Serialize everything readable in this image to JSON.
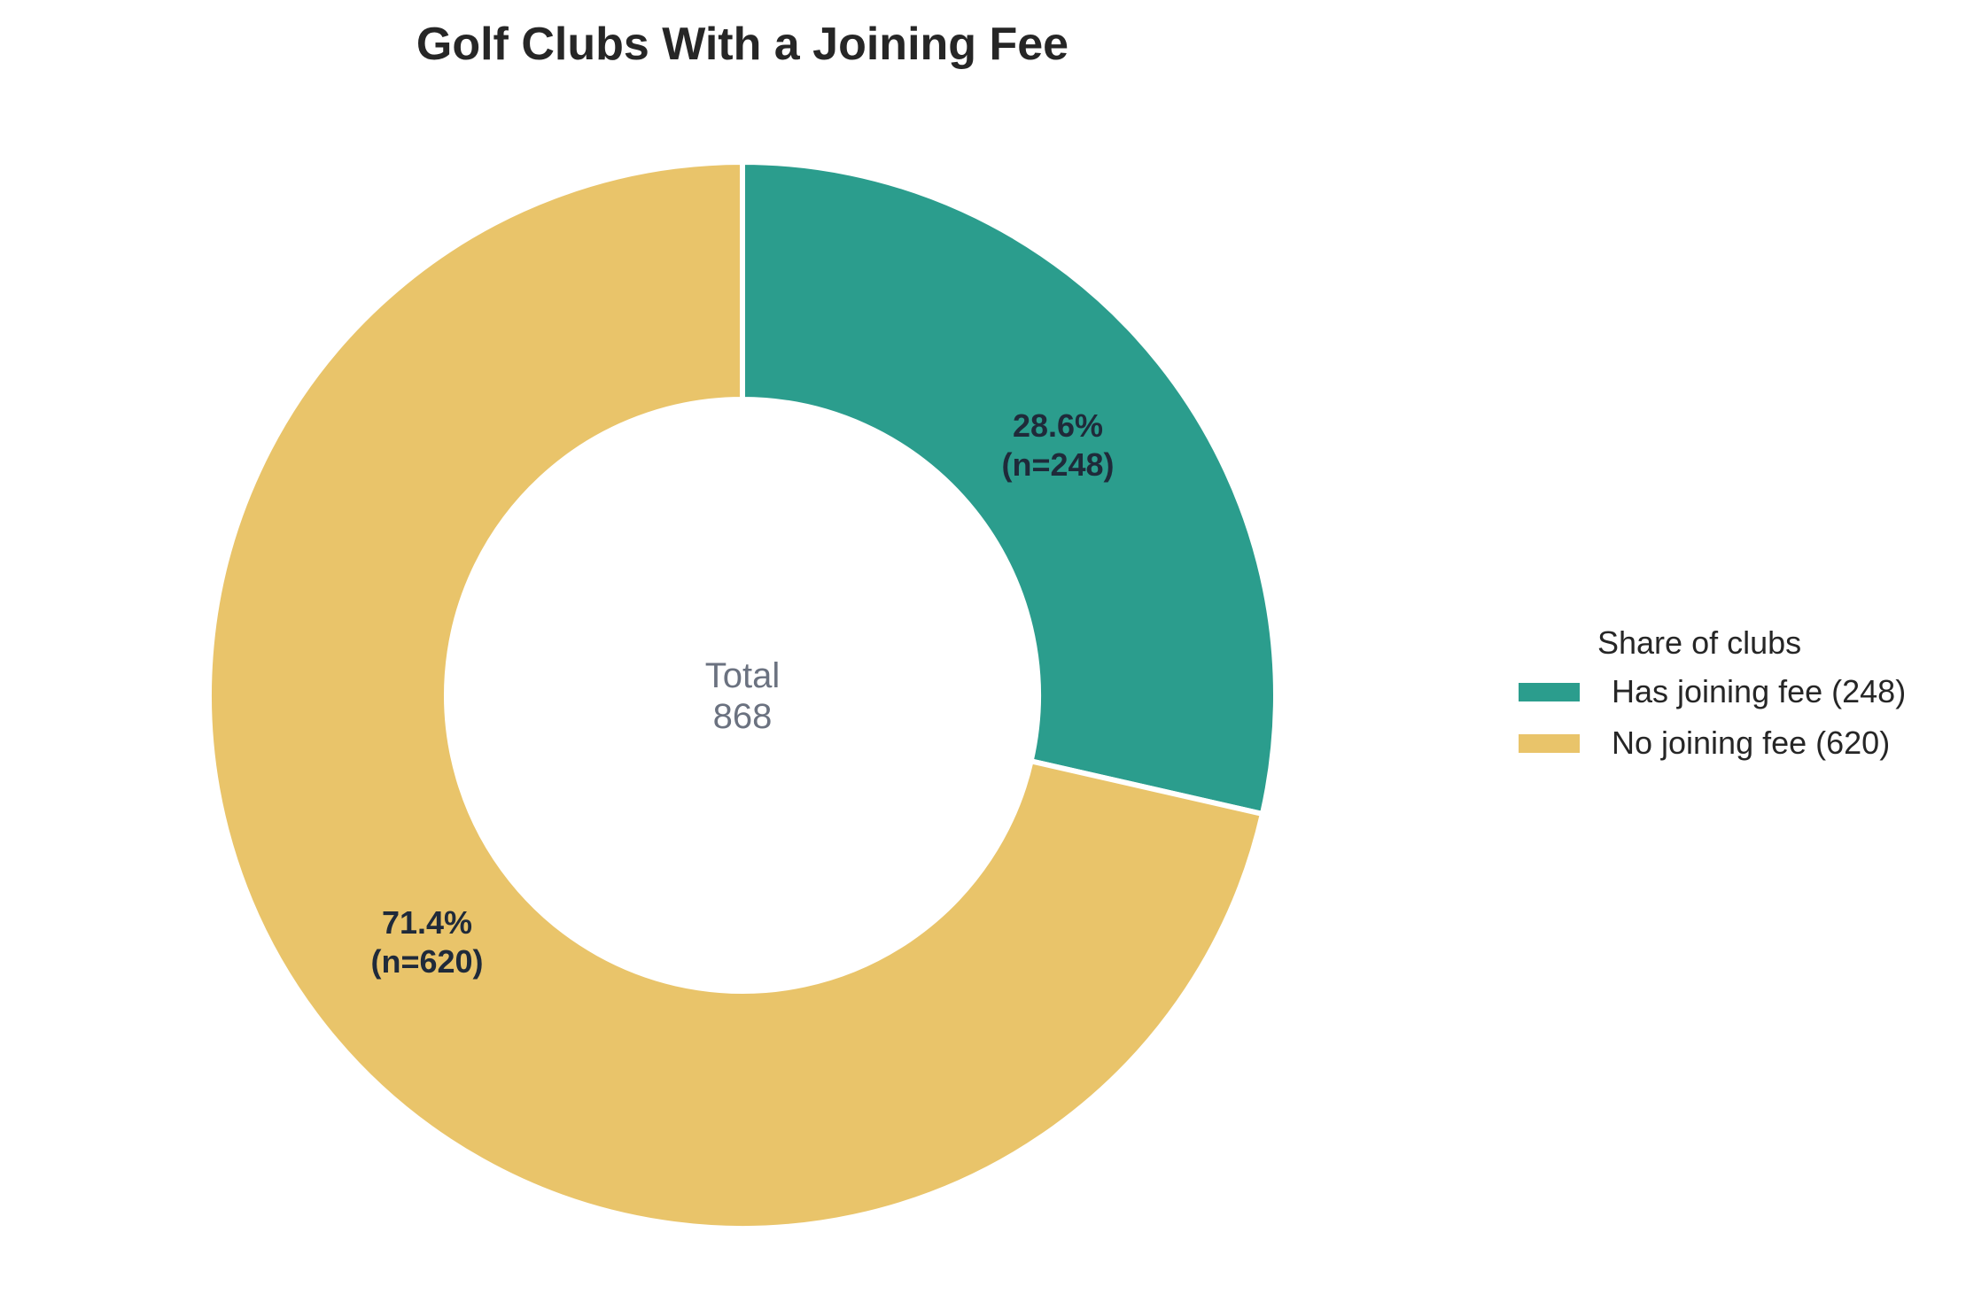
{
  "chart_data": {
    "type": "pie",
    "variant": "donut",
    "title": "Golf Clubs With a Joining Fee",
    "categories": [
      "Has joining fee",
      "No joining fee"
    ],
    "values": [
      248,
      620
    ],
    "percentages": [
      28.6,
      71.4
    ],
    "colors": [
      "#2b9d8d",
      "#e9c46a"
    ],
    "slice_labels": [
      {
        "pct": "28.6%",
        "n": "(n=248)"
      },
      {
        "pct": "71.4%",
        "n": "(n=620)"
      }
    ],
    "center_text": {
      "line1": "Total",
      "line2": "868"
    },
    "total": 868,
    "start_angle": 90,
    "direction": "clockwise",
    "legend": {
      "title": "Share of clubs",
      "position": "right",
      "entries": [
        "Has joining fee (248)",
        "No joining fee (620)"
      ]
    }
  }
}
